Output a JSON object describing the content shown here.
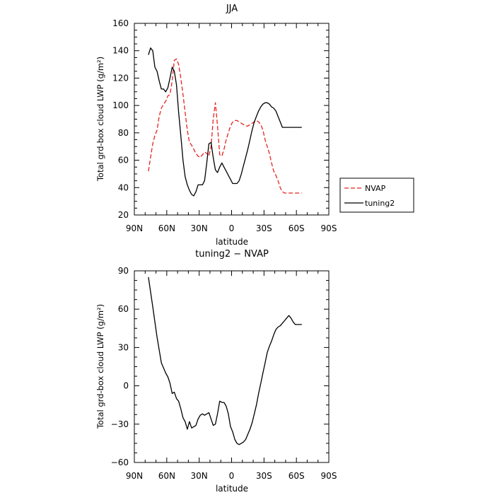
{
  "chart_data": [
    {
      "type": "line",
      "title": "JJA",
      "xlabel": "latitude",
      "ylabel": "Total grd-box cloud LWP (g/m²)",
      "xlim": [
        90,
        -90
      ],
      "ylim": [
        20,
        160
      ],
      "xticks": [
        90,
        60,
        30,
        0,
        -30,
        -60,
        -90
      ],
      "xtick_labels": [
        "90N",
        "60N",
        "30N",
        "0",
        "30S",
        "60S",
        "90S"
      ],
      "yticks": [
        20,
        40,
        60,
        80,
        100,
        120,
        140,
        160
      ],
      "ytick_labels": [
        "20",
        "40",
        "60",
        "80",
        "100",
        "120",
        "140",
        "160"
      ],
      "legend_position": "right",
      "series": [
        {
          "name": "NVAP",
          "color": "#e8231e",
          "dashed": true,
          "x": [
            77,
            75,
            73,
            71,
            69,
            67,
            65,
            63,
            61,
            59,
            57,
            55,
            53,
            51,
            49,
            47,
            45,
            43,
            41,
            39,
            37,
            35,
            33,
            31,
            29,
            27,
            25,
            23,
            21,
            19,
            17,
            15,
            13,
            11,
            9,
            7,
            5,
            3,
            1,
            -1,
            -3,
            -5,
            -7,
            -9,
            -11,
            -13,
            -15,
            -17,
            -19,
            -21,
            -23,
            -25,
            -27,
            -29,
            -31,
            -33,
            -35,
            -37,
            -39,
            -41,
            -43,
            -45,
            -47,
            -49,
            -51,
            -53,
            -55,
            -57,
            -59,
            -61,
            -63,
            -65
          ],
          "y": [
            52,
            62,
            72,
            78,
            82,
            92,
            98,
            101,
            103,
            107,
            108,
            118,
            133,
            134,
            130,
            120,
            108,
            95,
            82,
            73,
            71,
            68,
            65,
            63,
            62,
            64,
            66,
            65,
            63,
            70,
            90,
            102,
            85,
            64,
            63,
            68,
            75,
            80,
            85,
            88,
            89,
            89,
            88,
            87,
            86,
            85,
            85,
            86,
            87,
            88,
            89,
            88,
            86,
            82,
            75,
            70,
            65,
            58,
            52,
            49,
            45,
            40,
            37,
            36,
            36,
            36,
            36,
            36,
            36,
            36,
            36,
            36
          ]
        },
        {
          "name": "tuning2",
          "color": "#000000",
          "dashed": false,
          "x": [
            77,
            75,
            73,
            71,
            69,
            67,
            65,
            63,
            61,
            59,
            57,
            55,
            53,
            51,
            49,
            47,
            45,
            43,
            41,
            39,
            37,
            35,
            33,
            31,
            29,
            27,
            25,
            23,
            21,
            19,
            17,
            15,
            13,
            11,
            9,
            7,
            5,
            3,
            1,
            -1,
            -3,
            -5,
            -7,
            -9,
            -11,
            -13,
            -15,
            -17,
            -19,
            -21,
            -23,
            -25,
            -27,
            -29,
            -31,
            -33,
            -35,
            -37,
            -39,
            -41,
            -43,
            -45,
            -47,
            -49,
            -51,
            -53,
            -55,
            -57,
            -59,
            -61,
            -63,
            -65
          ],
          "y": [
            137,
            142,
            140,
            128,
            125,
            118,
            112,
            112,
            110,
            113,
            120,
            128,
            125,
            115,
            95,
            78,
            60,
            48,
            42,
            38,
            35,
            34,
            37,
            42,
            42,
            42,
            45,
            58,
            72,
            73,
            62,
            53,
            51,
            55,
            58,
            55,
            52,
            49,
            46,
            43,
            43,
            43,
            45,
            50,
            56,
            62,
            68,
            75,
            82,
            88,
            92,
            96,
            99,
            101,
            102,
            102,
            101,
            99,
            98,
            96,
            92,
            88,
            84,
            84,
            84,
            84,
            84,
            84,
            84,
            84,
            84,
            84
          ]
        }
      ]
    },
    {
      "type": "line",
      "title": "tuning2 − NVAP",
      "xlabel": "latitude",
      "ylabel": "Total grd-box cloud LWP (g/m²)",
      "xlim": [
        90,
        -90
      ],
      "ylim": [
        -60,
        90
      ],
      "xticks": [
        90,
        60,
        30,
        0,
        -30,
        -60,
        -90
      ],
      "xtick_labels": [
        "90N",
        "60N",
        "30N",
        "0",
        "30S",
        "60S",
        "90S"
      ],
      "yticks": [
        -60,
        -30,
        0,
        30,
        60,
        90
      ],
      "ytick_labels": [
        "−60",
        "−30",
        "0",
        "30",
        "60",
        "90"
      ],
      "series": [
        {
          "color": "#000000",
          "dashed": false,
          "x": [
            77,
            73,
            69,
            65,
            61,
            59,
            57,
            55,
            53,
            51,
            49,
            47,
            45,
            43,
            41,
            39,
            37,
            35,
            33,
            31,
            29,
            27,
            25,
            23,
            21,
            19,
            17,
            15,
            13,
            11,
            9,
            7,
            5,
            3,
            1,
            -1,
            -3,
            -5,
            -7,
            -9,
            -11,
            -13,
            -15,
            -17,
            -19,
            -21,
            -23,
            -25,
            -27,
            -29,
            -31,
            -33,
            -35,
            -37,
            -39,
            -41,
            -43,
            -45,
            -47,
            -49,
            -51,
            -53,
            -55,
            -57,
            -59,
            -61,
            -63,
            -65
          ],
          "y": [
            85,
            62,
            38,
            18,
            10,
            7,
            2,
            -6,
            -5,
            -10,
            -12,
            -18,
            -25,
            -28,
            -34,
            -28,
            -33,
            -32,
            -31,
            -26,
            -23,
            -22,
            -23,
            -22,
            -21,
            -26,
            -31,
            -30,
            -22,
            -12,
            -13,
            -13,
            -16,
            -22,
            -32,
            -36,
            -42,
            -45,
            -46,
            -45,
            -44,
            -42,
            -38,
            -34,
            -29,
            -22,
            -15,
            -6,
            2,
            10,
            18,
            26,
            31,
            35,
            40,
            44,
            46,
            47,
            49,
            51,
            53,
            55,
            53,
            50,
            48,
            48,
            48,
            48
          ]
        }
      ]
    }
  ]
}
